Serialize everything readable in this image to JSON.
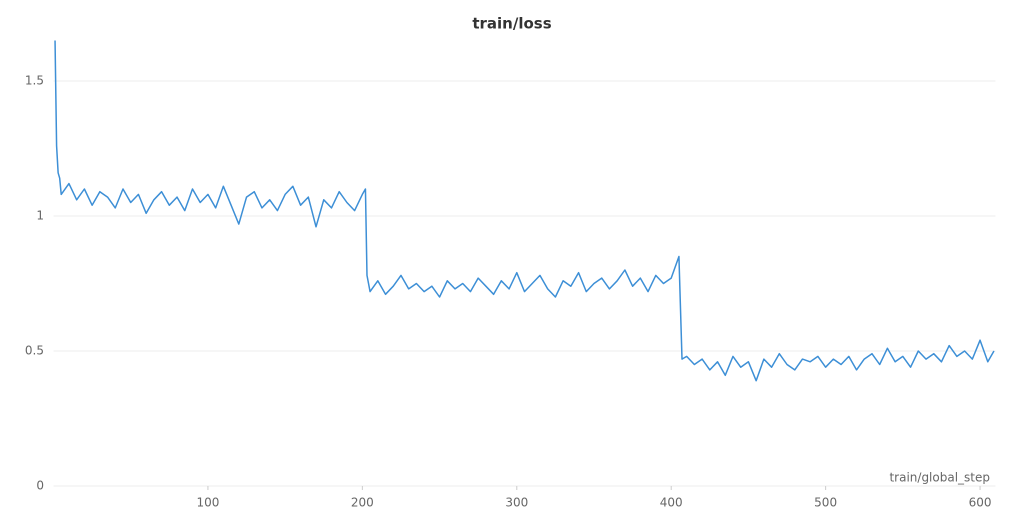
{
  "chart_data": {
    "type": "line",
    "title": "train/loss",
    "x_label": "train/global_step",
    "x": [
      1,
      2,
      3,
      4,
      5,
      10,
      15,
      20,
      25,
      30,
      35,
      40,
      45,
      50,
      55,
      60,
      65,
      70,
      75,
      80,
      85,
      90,
      95,
      100,
      105,
      110,
      115,
      120,
      125,
      130,
      135,
      140,
      145,
      150,
      155,
      160,
      165,
      170,
      175,
      180,
      185,
      190,
      195,
      200,
      202,
      203,
      205,
      210,
      215,
      220,
      225,
      230,
      235,
      240,
      245,
      250,
      255,
      260,
      265,
      270,
      275,
      280,
      285,
      290,
      295,
      300,
      305,
      310,
      315,
      320,
      325,
      330,
      335,
      340,
      345,
      350,
      355,
      360,
      365,
      370,
      375,
      380,
      385,
      390,
      395,
      400,
      405,
      407,
      410,
      415,
      420,
      425,
      430,
      435,
      440,
      445,
      450,
      455,
      460,
      465,
      470,
      475,
      480,
      485,
      490,
      495,
      500,
      505,
      510,
      515,
      520,
      525,
      530,
      535,
      540,
      545,
      550,
      555,
      560,
      565,
      570,
      575,
      580,
      585,
      590,
      595,
      600,
      605,
      609
    ],
    "series": [
      {
        "name": "train/loss",
        "color": "#3d8fd6",
        "values": [
          1.65,
          1.26,
          1.16,
          1.14,
          1.08,
          1.12,
          1.06,
          1.1,
          1.04,
          1.09,
          1.07,
          1.03,
          1.1,
          1.05,
          1.08,
          1.01,
          1.06,
          1.09,
          1.04,
          1.07,
          1.02,
          1.1,
          1.05,
          1.08,
          1.03,
          1.11,
          1.04,
          0.97,
          1.07,
          1.09,
          1.03,
          1.06,
          1.02,
          1.08,
          1.11,
          1.04,
          1.07,
          0.96,
          1.06,
          1.03,
          1.09,
          1.05,
          1.02,
          1.08,
          1.1,
          0.78,
          0.72,
          0.76,
          0.71,
          0.74,
          0.78,
          0.73,
          0.75,
          0.72,
          0.74,
          0.7,
          0.76,
          0.73,
          0.75,
          0.72,
          0.77,
          0.74,
          0.71,
          0.76,
          0.73,
          0.79,
          0.72,
          0.75,
          0.78,
          0.73,
          0.7,
          0.76,
          0.74,
          0.79,
          0.72,
          0.75,
          0.77,
          0.73,
          0.76,
          0.8,
          0.74,
          0.77,
          0.72,
          0.78,
          0.75,
          0.77,
          0.85,
          0.47,
          0.48,
          0.45,
          0.47,
          0.43,
          0.46,
          0.41,
          0.48,
          0.44,
          0.46,
          0.39,
          0.47,
          0.44,
          0.49,
          0.45,
          0.43,
          0.47,
          0.46,
          0.48,
          0.44,
          0.47,
          0.45,
          0.48,
          0.43,
          0.47,
          0.49,
          0.45,
          0.51,
          0.46,
          0.48,
          0.44,
          0.5,
          0.47,
          0.49,
          0.46,
          0.52,
          0.48,
          0.5,
          0.47,
          0.54,
          0.46,
          0.5
        ]
      }
    ],
    "xlim": [
      0,
      610
    ],
    "xticks": [
      100,
      200,
      300,
      400,
      500,
      600
    ],
    "ylim": [
      0,
      1.65
    ],
    "yticks": [
      0,
      0.5,
      1,
      1.5
    ],
    "grid": true
  }
}
